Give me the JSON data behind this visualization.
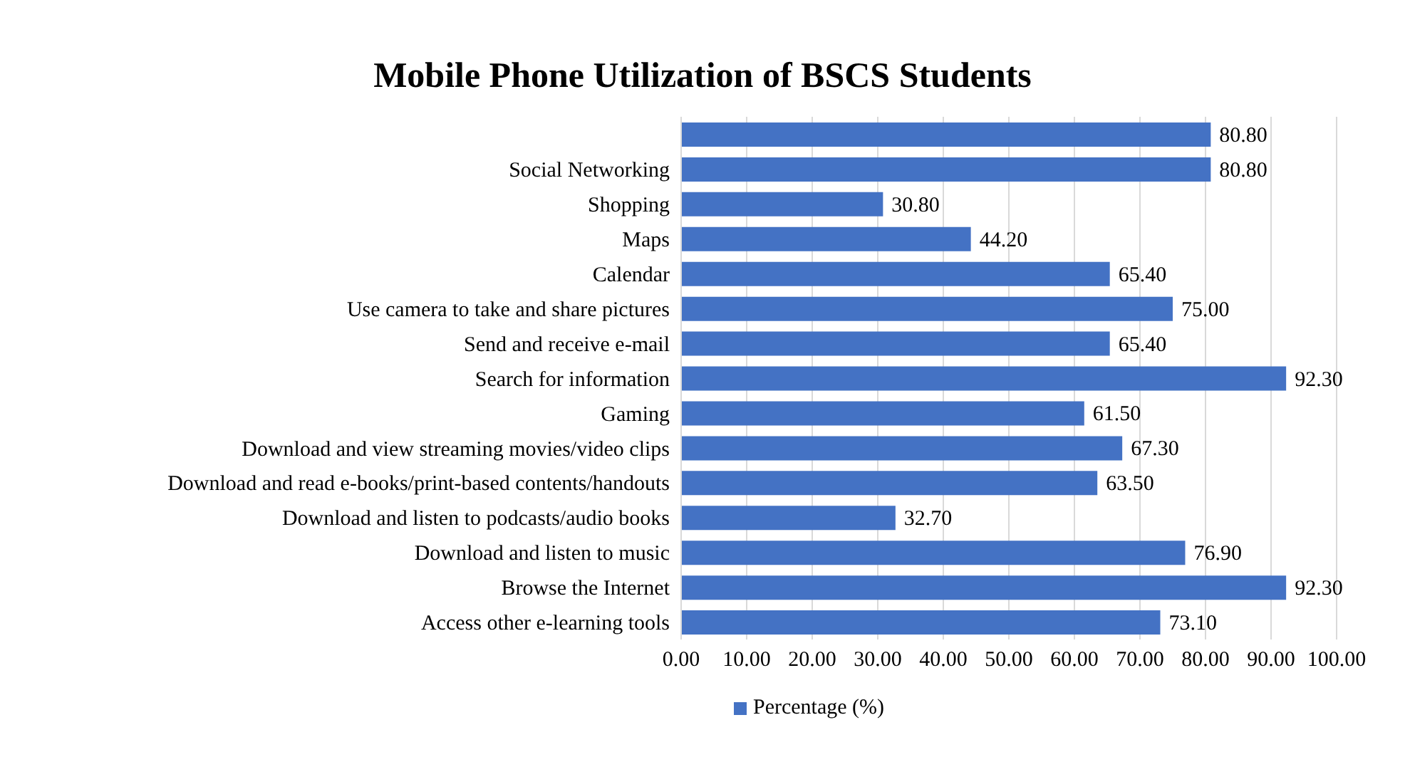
{
  "chart_data": {
    "type": "bar",
    "orientation": "horizontal",
    "title": "Mobile Phone Utilization of BSCS Students",
    "categories": [
      null,
      "Social Networking",
      "Shopping",
      "Maps",
      "Calendar",
      "Use camera to take and share pictures",
      "Send and receive e-mail",
      "Search for information",
      "Gaming",
      "Download and view streaming movies/video clips",
      "Download and read e-books/print-based contents/handouts",
      "Download and listen to podcasts/audio books",
      "Download and listen to music",
      "Browse the Internet",
      "Access other e-learning tools"
    ],
    "series": [
      {
        "name": "Percentage (%)",
        "color": "#4472c4",
        "values": [
          80.8,
          80.8,
          30.8,
          44.2,
          65.4,
          75.0,
          65.4,
          92.3,
          61.5,
          67.3,
          63.5,
          32.7,
          76.9,
          92.3,
          73.1
        ],
        "value_labels": [
          "80.80",
          "80.80",
          "30.80",
          "44.20",
          "65.40",
          "75.00",
          "65.40",
          "92.30",
          "61.50",
          "67.30",
          "63.50",
          "32.70",
          "76.90",
          "92.30",
          "73.10"
        ]
      }
    ],
    "xlim": [
      0,
      100
    ],
    "xticks": [
      {
        "value": 0,
        "label": "0.00"
      },
      {
        "value": 10,
        "label": "10.00"
      },
      {
        "value": 20,
        "label": "20.00"
      },
      {
        "value": 30,
        "label": "30.00"
      },
      {
        "value": 40,
        "label": "40.00"
      },
      {
        "value": 50,
        "label": "50.00"
      },
      {
        "value": 60,
        "label": "60.00"
      },
      {
        "value": 70,
        "label": "70.00"
      },
      {
        "value": 80,
        "label": "80.00"
      },
      {
        "value": 90,
        "label": "90.00"
      },
      {
        "value": 100,
        "label": "100.00"
      }
    ],
    "grid": "x",
    "legend": "bottom"
  }
}
